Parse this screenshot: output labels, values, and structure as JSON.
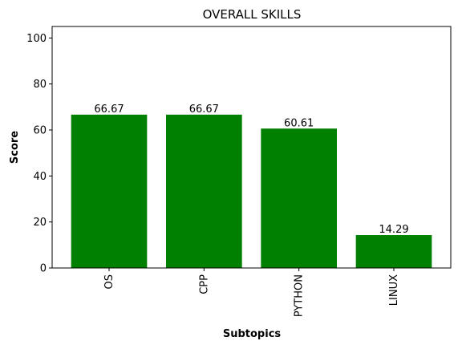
{
  "chart_data": {
    "type": "bar",
    "title": "OVERALL SKILLS",
    "xlabel": "Subtopics",
    "ylabel": "Score",
    "categories": [
      "OS",
      "CPP",
      "PYTHON",
      "LINUX"
    ],
    "values": [
      66.67,
      66.67,
      60.61,
      14.29
    ],
    "data_labels": [
      "66.67",
      "66.67",
      "60.61",
      "14.29"
    ],
    "ylim": [
      0,
      105
    ],
    "yticks": [
      0,
      20,
      40,
      60,
      80,
      100
    ],
    "ytick_labels": [
      "0",
      "20",
      "40",
      "60",
      "80",
      "100"
    ],
    "bar_color": "#008000",
    "grid": false,
    "legend": "none"
  }
}
